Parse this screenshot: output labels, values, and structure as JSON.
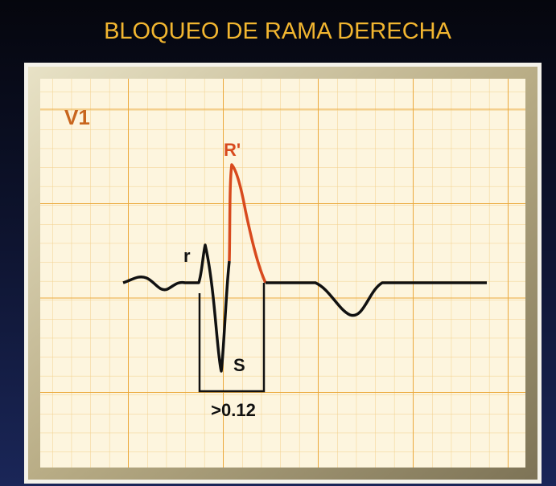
{
  "title": "BLOQUEO DE RAMA DERECHA",
  "lead": "V1",
  "labels": {
    "r_wave": "r",
    "r_prime": "R'",
    "s_wave": "S",
    "duration": ">0.12"
  }
}
